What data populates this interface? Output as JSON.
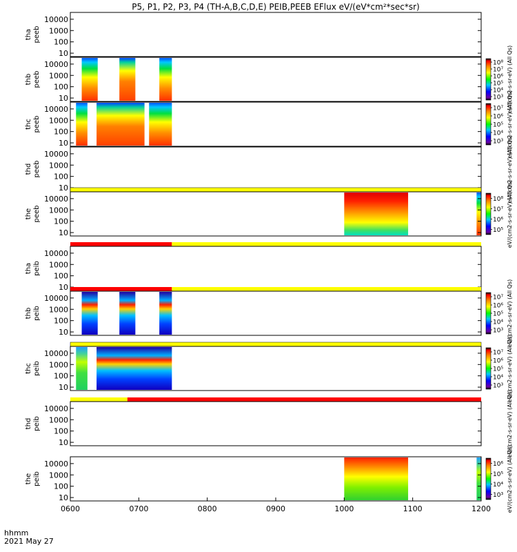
{
  "chart_data": {
    "type": "heatmap",
    "title": "P5, P1, P2, P3, P4 (TH-A,B,C,D,E) PEIB,PEEB EFlux eV/(eV*cm²*sec*sr)",
    "x_ticks": [
      "0600",
      "0700",
      "0800",
      "0900",
      "1000",
      "1100",
      "1200"
    ],
    "x_range": [
      "0600",
      "1200"
    ],
    "time_label": "hhmm",
    "date_label": "2021 May 27",
    "y_ticks": [
      "10",
      "100",
      "1000",
      "10000"
    ],
    "y_scale": "log",
    "y_range": [
      5,
      40000
    ],
    "colorscale": "rainbow (purple-blue-green-yellow-red-black)",
    "panels": [
      {
        "label_top": "tha",
        "label_bottom": "peeb",
        "status_bar": null,
        "intervals": [],
        "colorbar": null
      },
      {
        "label_top": "thb",
        "label_bottom": "peeb",
        "status_bar": null,
        "intervals": [
          [
            "0610",
            "0624"
          ],
          [
            "0643",
            "0657"
          ],
          [
            "0718",
            "0729"
          ]
        ],
        "colorbar": {
          "ticks": [
            "10³",
            "10⁴",
            "10⁵",
            "10⁶",
            "10⁷",
            "10⁸"
          ],
          "label": "eV/(cm2-s-sr-eV) (All Qs)"
        }
      },
      {
        "label_top": "thc",
        "label_bottom": "peeb",
        "status_bar": null,
        "intervals": [
          [
            "0605",
            "0615"
          ],
          [
            "0623",
            "0705"
          ],
          [
            "0709",
            "0729"
          ]
        ],
        "colorbar": {
          "ticks": [
            "10³",
            "10⁴",
            "10⁵",
            "10⁶",
            "10⁷"
          ],
          "label": "eV/(cm2-s-sr-eV) (All Qs)"
        }
      },
      {
        "label_top": "thd",
        "label_bottom": "peeb",
        "status_bar": null,
        "intervals": [],
        "colorbar": {
          "ticks": [],
          "label": "eV/(cm2-s-sr-eV) (All Qs)"
        }
      },
      {
        "label_top": "the",
        "label_bottom": "peeb",
        "status_bar": "yellow",
        "intervals": [
          [
            "1000",
            "1056"
          ],
          [
            "1156",
            "1200"
          ]
        ],
        "colorbar": {
          "ticks": [
            "10⁵",
            "10⁶",
            "10⁷",
            "10⁸"
          ],
          "label": "eV/(cm2-s-sr-eV) (All Qs)"
        }
      },
      {
        "label_top": "tha",
        "label_bottom": "peib",
        "status_bar": "red-yellow",
        "intervals": [],
        "colorbar": null
      },
      {
        "label_top": "thb",
        "label_bottom": "peib",
        "status_bar": "red-yellow",
        "intervals": [
          [
            "0610",
            "0624"
          ],
          [
            "0643",
            "0657"
          ],
          [
            "0718",
            "0729"
          ]
        ],
        "colorbar": {
          "ticks": [
            "10³",
            "10⁴",
            "10⁵",
            "10⁶",
            "10⁷"
          ],
          "label": "eV/(cm2-s-sr-eV) (All Qs)"
        }
      },
      {
        "label_top": "thc",
        "label_bottom": "peib",
        "status_bar": "yellow",
        "intervals": [
          [
            "0605",
            "0615"
          ],
          [
            "0623",
            "0729"
          ]
        ],
        "colorbar": {
          "ticks": [
            "10³",
            "10⁴",
            "10⁵",
            "10⁶",
            "10⁷"
          ],
          "label": "eV/(cm2-s-sr-eV) (All Qs)"
        }
      },
      {
        "label_top": "thd",
        "label_bottom": "peib",
        "status_bar": "yellow-red",
        "intervals": [],
        "colorbar": {
          "ticks": [],
          "label": "eV/(cm2-s-sr-eV) (All Qs)"
        }
      },
      {
        "label_top": "the",
        "label_bottom": "peib",
        "status_bar": null,
        "intervals": [
          [
            "1000",
            "1056"
          ],
          [
            "1156",
            "1200"
          ]
        ],
        "colorbar": {
          "ticks": [
            "10³",
            "10⁴",
            "10⁵",
            "10⁶"
          ],
          "label": "eV/(cm2-s-sr-eV) (All Qs)"
        }
      }
    ]
  }
}
